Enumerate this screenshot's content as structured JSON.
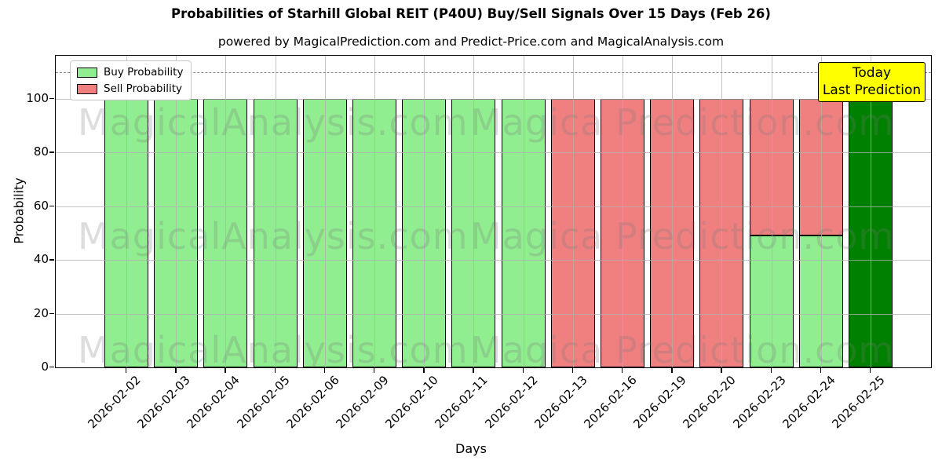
{
  "chart_data": {
    "type": "bar",
    "stacked": true,
    "title": "Probabilities of Starhill Global REIT (P40U) Buy/Sell Signals Over 15 Days (Feb 26)",
    "subtitle": "powered by MagicalPrediction.com and Predict-Price.com and MagicalAnalysis.com",
    "xlabel": "Days",
    "ylabel": "Probability",
    "ylim": [
      0,
      116
    ],
    "yticks": [
      0,
      20,
      40,
      60,
      80,
      100
    ],
    "dashed_line_y": 110,
    "grid": true,
    "legend_position": "upper left",
    "categories": [
      "2026-02-02",
      "2026-02-03",
      "2026-02-04",
      "2026-02-05",
      "2026-02-06",
      "2026-02-09",
      "2026-02-10",
      "2026-02-11",
      "2026-02-12",
      "2026-02-13",
      "2026-02-16",
      "2026-02-19",
      "2026-02-20",
      "2026-02-23",
      "2026-02-24",
      "2026-02-25"
    ],
    "series": [
      {
        "name": "Buy Probability",
        "color": "#90EE90",
        "values": [
          100,
          100,
          100,
          100,
          100,
          100,
          100,
          100,
          100,
          0,
          0,
          0,
          0,
          49,
          49,
          100
        ]
      },
      {
        "name": "Sell Probability",
        "color": "#F08080",
        "values": [
          0,
          0,
          0,
          0,
          0,
          0,
          0,
          0,
          0,
          100,
          100,
          100,
          100,
          51,
          51,
          0
        ]
      }
    ],
    "today_index": 15,
    "today_buy_color": "#008000",
    "annotation": {
      "line1": "Today",
      "line2": "Last Prediction",
      "bg": "#ffff00"
    },
    "watermarks": [
      "MagicalAnalysis.com",
      "Magica Prediction.com"
    ]
  }
}
